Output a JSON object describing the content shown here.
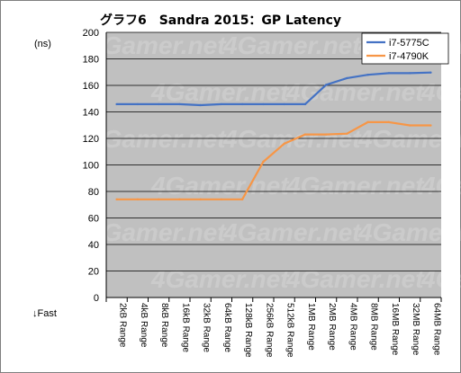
{
  "chart_data": {
    "type": "line",
    "title": "グラフ6　Sandra 2015：GP Latency",
    "ylabel": "(ns)",
    "y_note": "↓Fast",
    "ylim": [
      0,
      200
    ],
    "yticks": [
      0,
      20,
      40,
      60,
      80,
      100,
      120,
      140,
      160,
      180,
      200
    ],
    "categories": [
      "2kB Range",
      "4kB Range",
      "8kB Range",
      "16kB Range",
      "32kB Range",
      "64kB Range",
      "128kB Range",
      "256kB Range",
      "512kB Range",
      "1MB Range",
      "2MB Range",
      "4MB Range",
      "8MB Range",
      "16MB Range",
      "32MB Range",
      "64MB Range"
    ],
    "series": [
      {
        "name": "i7-5775C",
        "color": "#4472c4",
        "values": [
          145.8,
          145.8,
          145.8,
          145.8,
          145.1,
          145.8,
          145.8,
          145.8,
          145.8,
          145.8,
          160.4,
          165.5,
          168.0,
          169.2,
          169.2,
          169.7
        ]
      },
      {
        "name": "i7-4790K",
        "color": "#f79646",
        "values": [
          74.0,
          74.0,
          74.0,
          74.0,
          74.0,
          74.0,
          74.0,
          102.4,
          116.0,
          123.0,
          123.0,
          123.6,
          132.3,
          132.3,
          129.8,
          129.8
        ]
      }
    ],
    "grid": true,
    "legend": "top-right",
    "watermark": "4Gamer.net",
    "plot_background": "#c0c0c0"
  }
}
